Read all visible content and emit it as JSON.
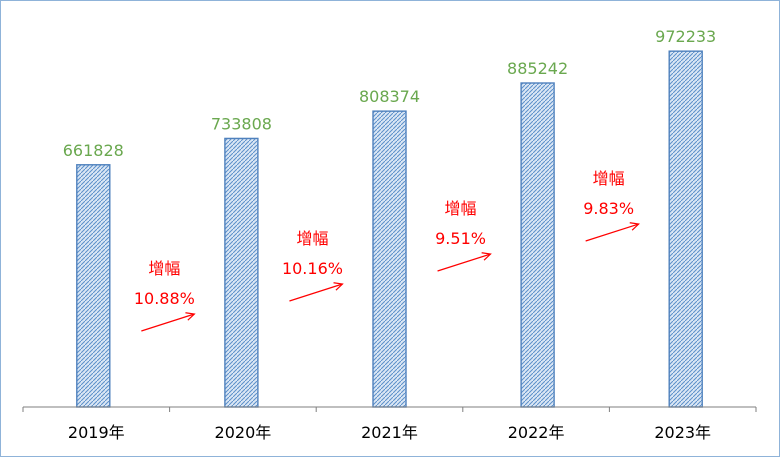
{
  "chart_data": {
    "type": "bar",
    "categories": [
      "2019年",
      "2020年",
      "2021年",
      "2022年",
      "2023年"
    ],
    "values": [
      661828,
      733808,
      808374,
      885242,
      972233
    ],
    "value_labels": [
      "661828",
      "733808",
      "808374",
      "885242",
      "972233"
    ],
    "ylim": [
      0,
      1000000
    ],
    "grid": false,
    "legend": "none",
    "annotations": [
      {
        "title": "增幅",
        "value": "10.88%"
      },
      {
        "title": "增幅",
        "value": "10.16%"
      },
      {
        "title": "增幅",
        "value": "9.51%"
      },
      {
        "title": "增幅",
        "value": "9.83%"
      }
    ],
    "colors": {
      "bar_fill": "#a9c4e4",
      "bar_stroke": "#4f81bd",
      "value_label": "#6aa84f",
      "annotation": "#ff0000",
      "axis": "#7f7f7f"
    }
  }
}
